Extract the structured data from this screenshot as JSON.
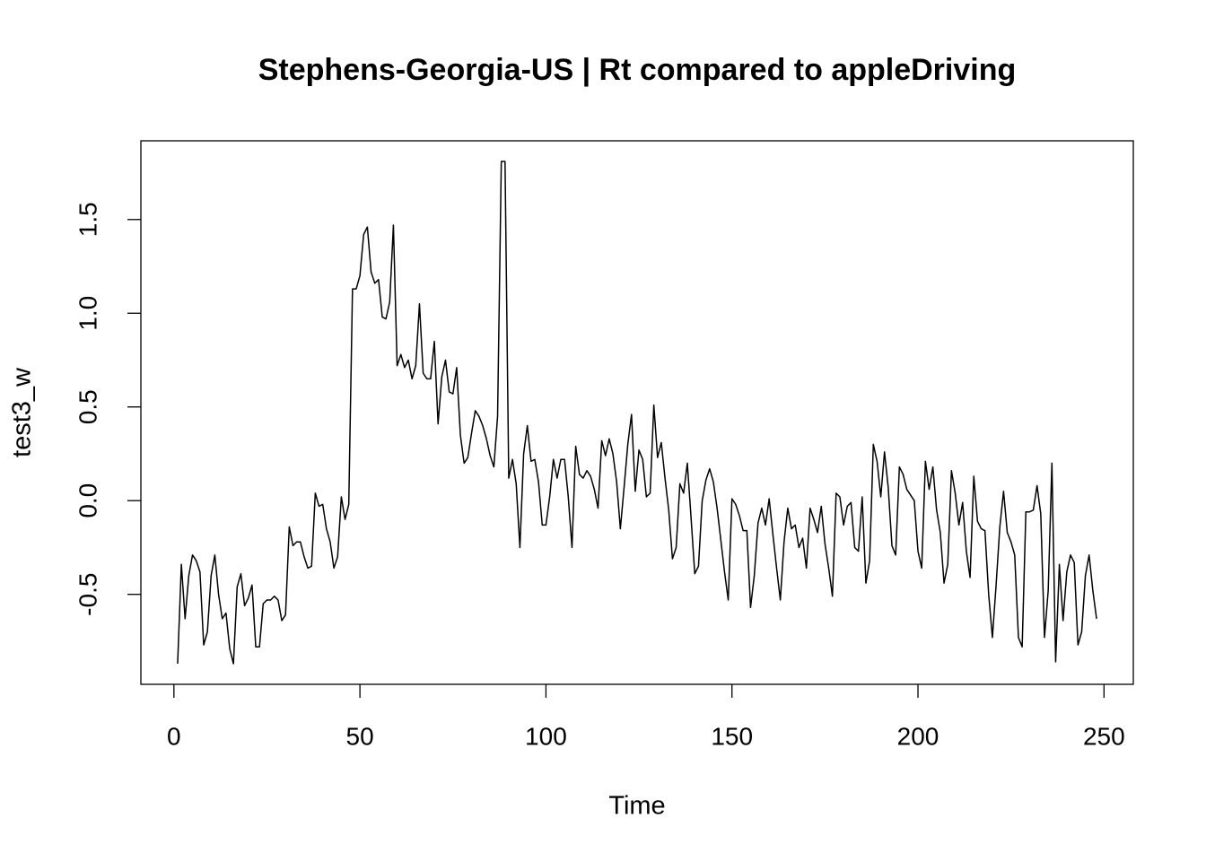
{
  "chart_data": {
    "type": "line",
    "title": "Stephens-Georgia-US | Rt compared to appleDriving",
    "x_label": "Time",
    "y_label": "test3_w",
    "xlim": [
      -8.88,
      257.88
    ],
    "ylim": [
      -0.98,
      1.92
    ],
    "xticks": [
      0,
      50,
      100,
      150,
      200,
      250
    ],
    "yticks": [
      {
        "value": -0.5,
        "label": "-0.5"
      },
      {
        "value": 0,
        "label": "0.0"
      },
      0.5,
      {
        "value": 1,
        "label": "1.0"
      },
      1.5
    ],
    "grid": false,
    "x": [
      1,
      2,
      3,
      4,
      5,
      6,
      7,
      8,
      9,
      10,
      11,
      12,
      13,
      14,
      15,
      16,
      17,
      18,
      19,
      20,
      21,
      22,
      23,
      24,
      25,
      26,
      27,
      28,
      29,
      30,
      31,
      32,
      33,
      34,
      35,
      36,
      37,
      38,
      39,
      40,
      41,
      42,
      43,
      44,
      45,
      46,
      47,
      48,
      49,
      50,
      51,
      52,
      53,
      54,
      55,
      56,
      57,
      58,
      59,
      60,
      61,
      62,
      63,
      64,
      65,
      66,
      67,
      68,
      69,
      70,
      71,
      72,
      73,
      74,
      75,
      76,
      77,
      78,
      79,
      80,
      81,
      82,
      83,
      84,
      85,
      86,
      87,
      88,
      89,
      90,
      91,
      92,
      93,
      94,
      95,
      96,
      97,
      98,
      99,
      100,
      101,
      102,
      103,
      104,
      105,
      106,
      107,
      108,
      109,
      110,
      111,
      112,
      113,
      114,
      115,
      116,
      117,
      118,
      119,
      120,
      121,
      122,
      123,
      124,
      125,
      126,
      127,
      128,
      129,
      130,
      131,
      132,
      133,
      134,
      135,
      136,
      137,
      138,
      139,
      140,
      141,
      142,
      143,
      144,
      145,
      146,
      147,
      148,
      149,
      150,
      151,
      152,
      153,
      154,
      155,
      156,
      157,
      158,
      159,
      160,
      161,
      162,
      163,
      164,
      165,
      166,
      167,
      168,
      169,
      170,
      171,
      172,
      173,
      174,
      175,
      176,
      177,
      178,
      179,
      180,
      181,
      182,
      183,
      184,
      185,
      186,
      187,
      188,
      189,
      190,
      191,
      192,
      193,
      194,
      195,
      196,
      197,
      198,
      199,
      200,
      201,
      202,
      203,
      204,
      205,
      206,
      207,
      208,
      209,
      210,
      211,
      212,
      213,
      214,
      215,
      216,
      217,
      218,
      219,
      220,
      221,
      222,
      223,
      224,
      225,
      226,
      227,
      228,
      229,
      230,
      231,
      232,
      233,
      234,
      235,
      236,
      237,
      238,
      239,
      240,
      241,
      242,
      243,
      244,
      245,
      246,
      247,
      248
    ],
    "series": [
      {
        "color": "#000000",
        "values": [
          -0.87,
          -0.34,
          -0.63,
          -0.4,
          -0.29,
          -0.32,
          -0.38,
          -0.77,
          -0.7,
          -0.4,
          -0.29,
          -0.5,
          -0.63,
          -0.6,
          -0.79,
          -0.87,
          -0.46,
          -0.39,
          -0.56,
          -0.52,
          -0.45,
          -0.78,
          -0.78,
          -0.55,
          -0.53,
          -0.53,
          -0.51,
          -0.53,
          -0.64,
          -0.61,
          -0.14,
          -0.24,
          -0.22,
          -0.22,
          -0.3,
          -0.36,
          -0.35,
          0.04,
          -0.03,
          -0.02,
          -0.15,
          -0.22,
          -0.36,
          -0.3,
          0.02,
          -0.1,
          -0.02,
          1.13,
          1.13,
          1.2,
          1.42,
          1.46,
          1.22,
          1.16,
          1.18,
          0.98,
          0.97,
          1.06,
          1.47,
          0.72,
          0.78,
          0.71,
          0.75,
          0.65,
          0.72,
          1.05,
          0.68,
          0.65,
          0.65,
          0.85,
          0.41,
          0.66,
          0.75,
          0.58,
          0.57,
          0.71,
          0.35,
          0.2,
          0.23,
          0.36,
          0.48,
          0.45,
          0.4,
          0.33,
          0.24,
          0.18,
          0.45,
          1.81,
          1.81,
          0.12,
          0.22,
          0.09,
          -0.25,
          0.25,
          0.4,
          0.21,
          0.22,
          0.1,
          -0.13,
          -0.13,
          0.02,
          0.22,
          0.12,
          0.22,
          0.22,
          0.02,
          -0.25,
          0.29,
          0.14,
          0.12,
          0.16,
          0.13,
          0.06,
          -0.04,
          0.32,
          0.24,
          0.33,
          0.25,
          0.1,
          -0.15,
          0.07,
          0.3,
          0.46,
          0.05,
          0.27,
          0.22,
          0.02,
          0.04,
          0.51,
          0.23,
          0.31,
          0.12,
          -0.05,
          -0.31,
          -0.25,
          0.09,
          0.04,
          0.2,
          -0.09,
          -0.39,
          -0.35,
          0.0,
          0.11,
          0.17,
          0.1,
          -0.04,
          -0.21,
          -0.38,
          -0.53,
          0.01,
          -0.02,
          -0.08,
          -0.16,
          -0.16,
          -0.57,
          -0.4,
          -0.12,
          -0.04,
          -0.13,
          0.01,
          -0.18,
          -0.36,
          -0.53,
          -0.22,
          -0.04,
          -0.15,
          -0.13,
          -0.25,
          -0.2,
          -0.36,
          -0.04,
          -0.1,
          -0.17,
          -0.03,
          -0.23,
          -0.36,
          -0.51,
          0.04,
          0.02,
          -0.13,
          -0.03,
          -0.01,
          -0.25,
          -0.27,
          0.02,
          -0.44,
          -0.32,
          0.3,
          0.21,
          0.02,
          0.26,
          0.07,
          -0.24,
          -0.29,
          0.18,
          0.14,
          0.06,
          0.03,
          0.0,
          -0.27,
          -0.36,
          0.21,
          0.06,
          0.18,
          -0.05,
          -0.17,
          -0.44,
          -0.34,
          0.16,
          0.04,
          -0.13,
          -0.01,
          -0.27,
          -0.41,
          0.13,
          -0.11,
          -0.15,
          -0.16,
          -0.5,
          -0.73,
          -0.45,
          -0.14,
          0.05,
          -0.17,
          -0.22,
          -0.29,
          -0.73,
          -0.78,
          -0.06,
          -0.06,
          -0.05,
          0.08,
          -0.07,
          -0.73,
          -0.48,
          0.2,
          -0.86,
          -0.34,
          -0.64,
          -0.38,
          -0.29,
          -0.33,
          -0.77,
          -0.7,
          -0.4,
          -0.29,
          -0.48,
          -0.63
        ]
      }
    ]
  }
}
